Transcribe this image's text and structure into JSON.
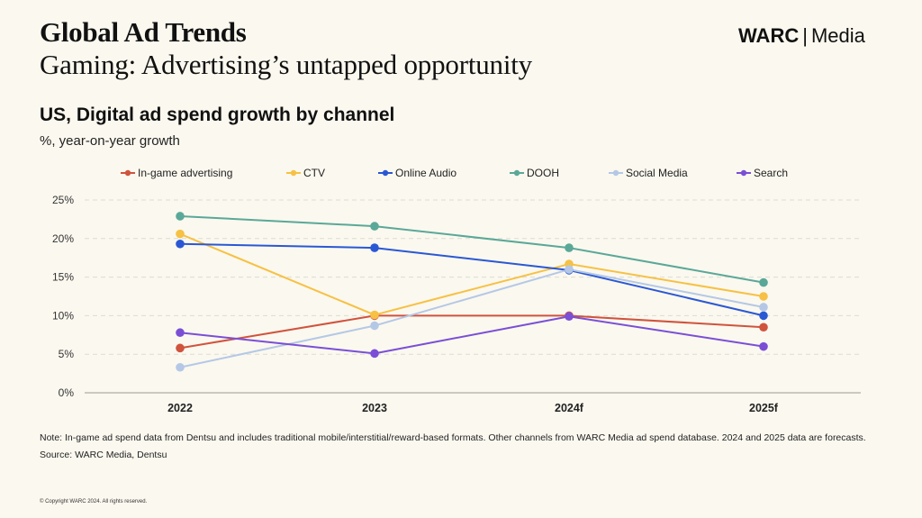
{
  "header": {
    "title": "Global Ad Trends",
    "subtitle": "Gaming: Advertising’s untapped opportunity"
  },
  "logo": {
    "brand": "WARC",
    "separator": "|",
    "product": "Media"
  },
  "colors": {
    "background": "#fbf8ef",
    "grid": "#dcdcd4",
    "axis": "#9a9a94"
  },
  "chart_data": {
    "type": "line",
    "title": "US, Digital ad spend growth by channel",
    "subtitle": "%, year-on-year growth",
    "categories": [
      "2022",
      "2023",
      "2024f",
      "2025f"
    ],
    "ylim": [
      0,
      25
    ],
    "yticks": [
      0,
      5,
      10,
      15,
      20,
      25
    ],
    "ytick_labels": [
      "0%",
      "5%",
      "10%",
      "15%",
      "20%",
      "25%"
    ],
    "grid": true,
    "legend_position": "top",
    "series": [
      {
        "name": "In-game advertising",
        "color": "#d0533d",
        "values": [
          5.8,
          10.0,
          10.0,
          8.5
        ]
      },
      {
        "name": "CTV",
        "color": "#f6c144",
        "values": [
          20.6,
          10.1,
          16.7,
          12.5
        ]
      },
      {
        "name": "Online Audio",
        "color": "#2a58d4",
        "values": [
          19.3,
          18.8,
          15.9,
          10.0
        ]
      },
      {
        "name": "DOOH",
        "color": "#5aa898",
        "values": [
          22.9,
          21.6,
          18.8,
          14.3
        ]
      },
      {
        "name": "Social Media",
        "color": "#b4c8e6",
        "values": [
          3.3,
          8.7,
          16.0,
          11.1
        ]
      },
      {
        "name": "Search",
        "color": "#7a4fd6",
        "values": [
          7.8,
          5.1,
          9.9,
          6.0
        ]
      }
    ]
  },
  "footer": {
    "note": "Note: In-game ad spend data from Dentsu and includes traditional mobile/interstitial/reward-based formats. Other channels from WARC Media ad spend database. 2024 and 2025 data are forecasts.",
    "source": "Source: WARC Media, Dentsu",
    "copyright": "© Copyright WARC 2024. All rights reserved."
  }
}
